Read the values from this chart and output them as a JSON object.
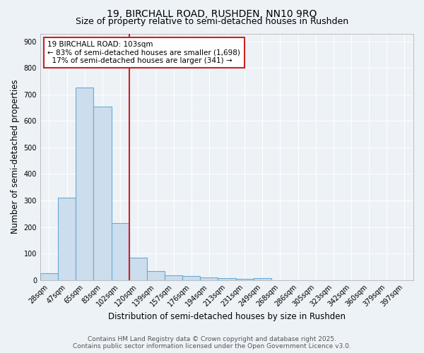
{
  "title_line1": "19, BIRCHALL ROAD, RUSHDEN, NN10 9RQ",
  "title_line2": "Size of property relative to semi-detached houses in Rushden",
  "xlabel": "Distribution of semi-detached houses by size in Rushden",
  "ylabel": "Number of semi-detached properties",
  "bin_labels": [
    "28sqm",
    "47sqm",
    "65sqm",
    "83sqm",
    "102sqm",
    "120sqm",
    "139sqm",
    "157sqm",
    "176sqm",
    "194sqm",
    "213sqm",
    "231sqm",
    "249sqm",
    "268sqm",
    "286sqm",
    "305sqm",
    "323sqm",
    "342sqm",
    "360sqm",
    "379sqm",
    "397sqm"
  ],
  "bar_heights": [
    25,
    310,
    725,
    655,
    215,
    85,
    35,
    18,
    15,
    10,
    8,
    5,
    8,
    0,
    0,
    0,
    0,
    0,
    0,
    0,
    0
  ],
  "bar_color": "#ccdded",
  "bar_edge_color": "#6aaad4",
  "vline_color": "#cc2222",
  "annotation_line1": "19 BIRCHALL ROAD: 103sqm",
  "annotation_line2": "← 83% of semi-detached houses are smaller (1,698)",
  "annotation_line3": "17% of semi-detached houses are larger (341) →",
  "annotation_box_color": "#ffffff",
  "annotation_edge_color": "#cc2222",
  "ylim": [
    0,
    930
  ],
  "yticks": [
    0,
    100,
    200,
    300,
    400,
    500,
    600,
    700,
    800,
    900
  ],
  "background_color": "#edf2f7",
  "grid_color": "#ffffff",
  "footer_line1": "Contains HM Land Registry data © Crown copyright and database right 2025.",
  "footer_line2": "Contains public sector information licensed under the Open Government Licence v3.0.",
  "title_fontsize": 10,
  "subtitle_fontsize": 9,
  "axis_label_fontsize": 8.5,
  "tick_fontsize": 7,
  "annotation_fontsize": 7.5,
  "footer_fontsize": 6.5
}
